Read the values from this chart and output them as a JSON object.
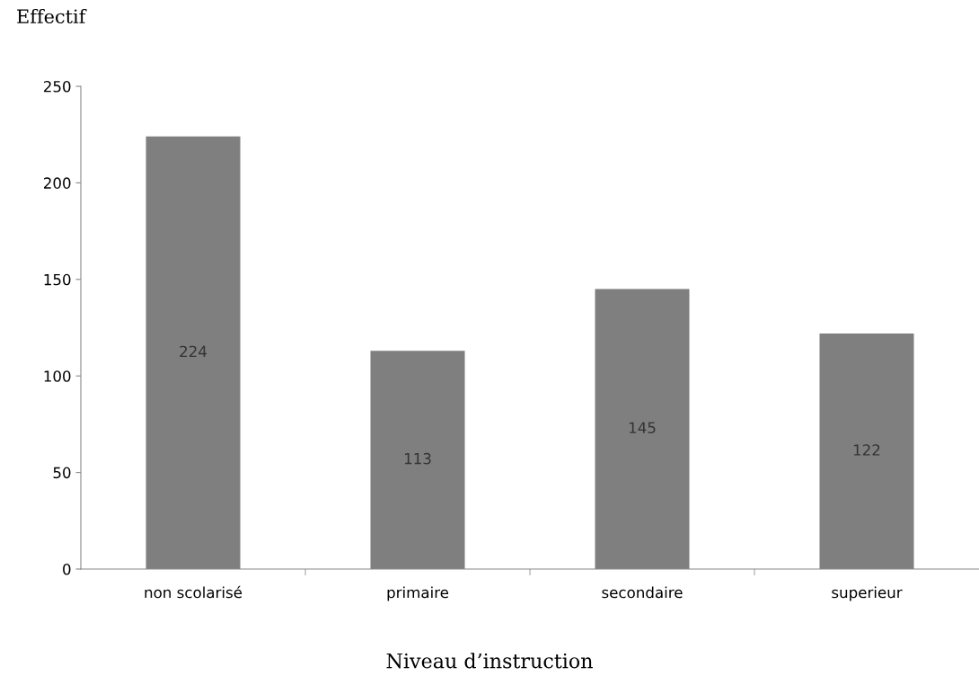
{
  "chart_data": {
    "type": "bar",
    "ylabel": "Effectif",
    "xlabel": "Niveau d’instruction",
    "categories": [
      "non scolarisé",
      "primaire",
      "secondaire",
      "superieur"
    ],
    "values": [
      224,
      113,
      145,
      122
    ],
    "color": "#7f7f7f",
    "ylim": [
      0,
      250
    ],
    "yticks": [
      0,
      50,
      100,
      150,
      200,
      250
    ],
    "data_labels": true,
    "grid": false,
    "legend": false
  }
}
